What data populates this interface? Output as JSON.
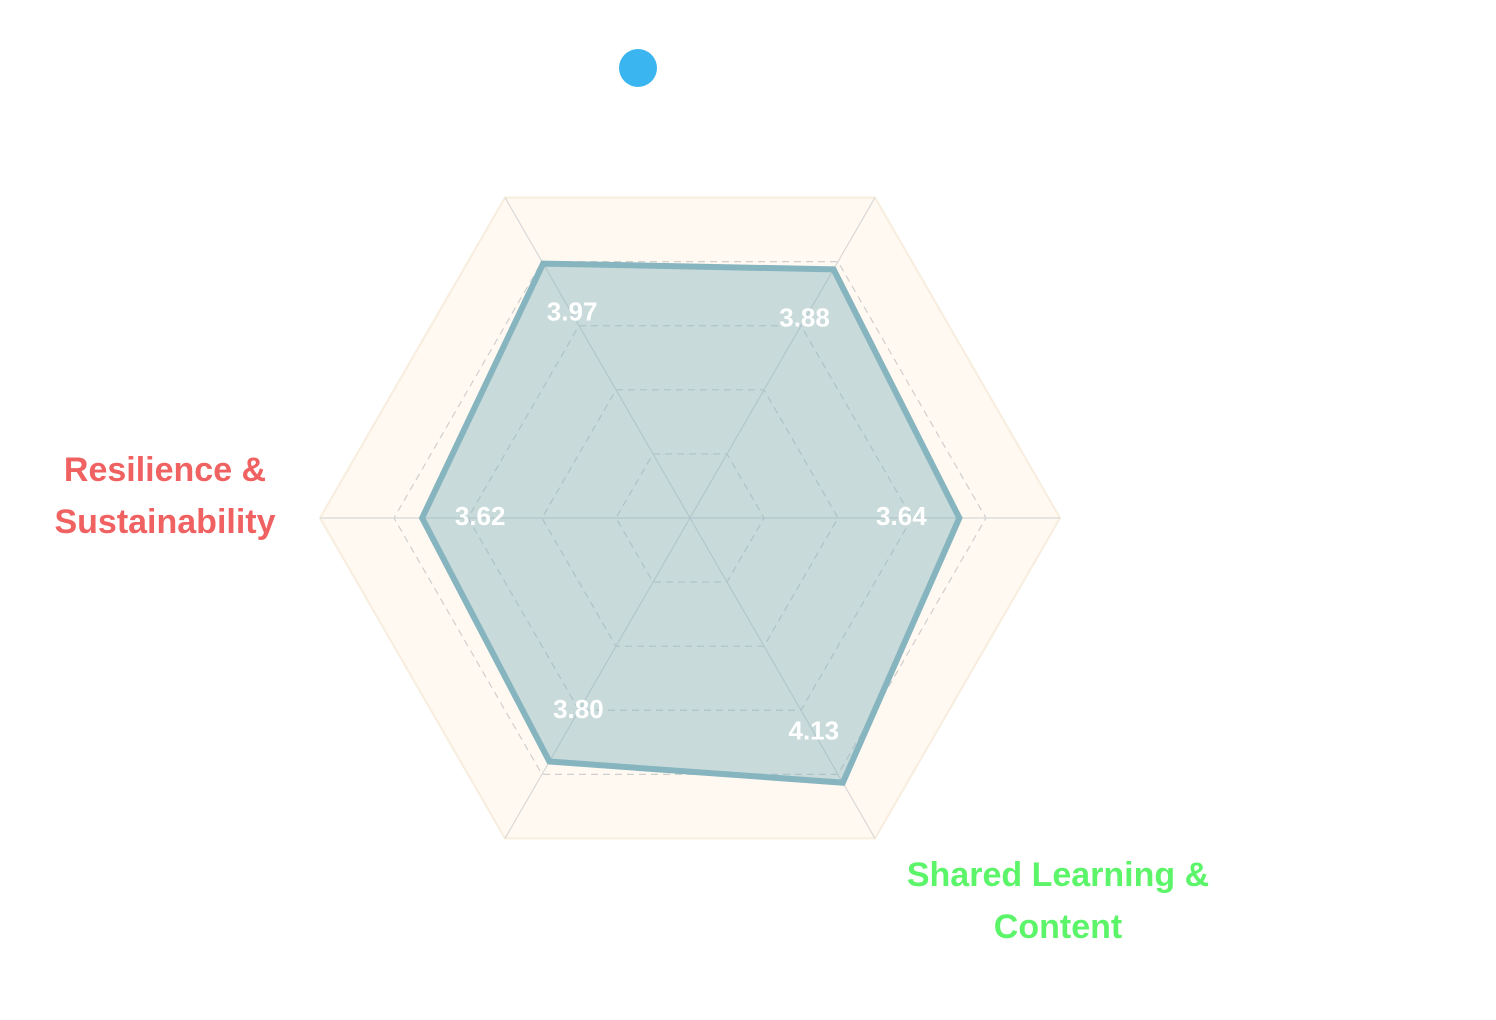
{
  "chart_data": {
    "type": "radar",
    "categories": [
      null,
      null,
      null,
      "Shared Learning & Content",
      null,
      "Resilience & Sustainability"
    ],
    "label_colors": [
      null,
      null,
      null,
      "#5cf56a",
      null,
      "#f06262"
    ],
    "series": [
      {
        "color": "#86b4bf",
        "values": [
          3.97,
          3.88,
          3.64,
          4.13,
          3.8,
          3.62
        ],
        "value_labels": [
          "3.97",
          "3.88",
          "3.64",
          "4.13",
          "3.80",
          "3.62"
        ]
      }
    ],
    "rlim": [
      0,
      5
    ],
    "rticks": [
      1,
      2,
      3,
      4,
      5
    ],
    "legend": {
      "color": "#3bb5f0"
    }
  }
}
